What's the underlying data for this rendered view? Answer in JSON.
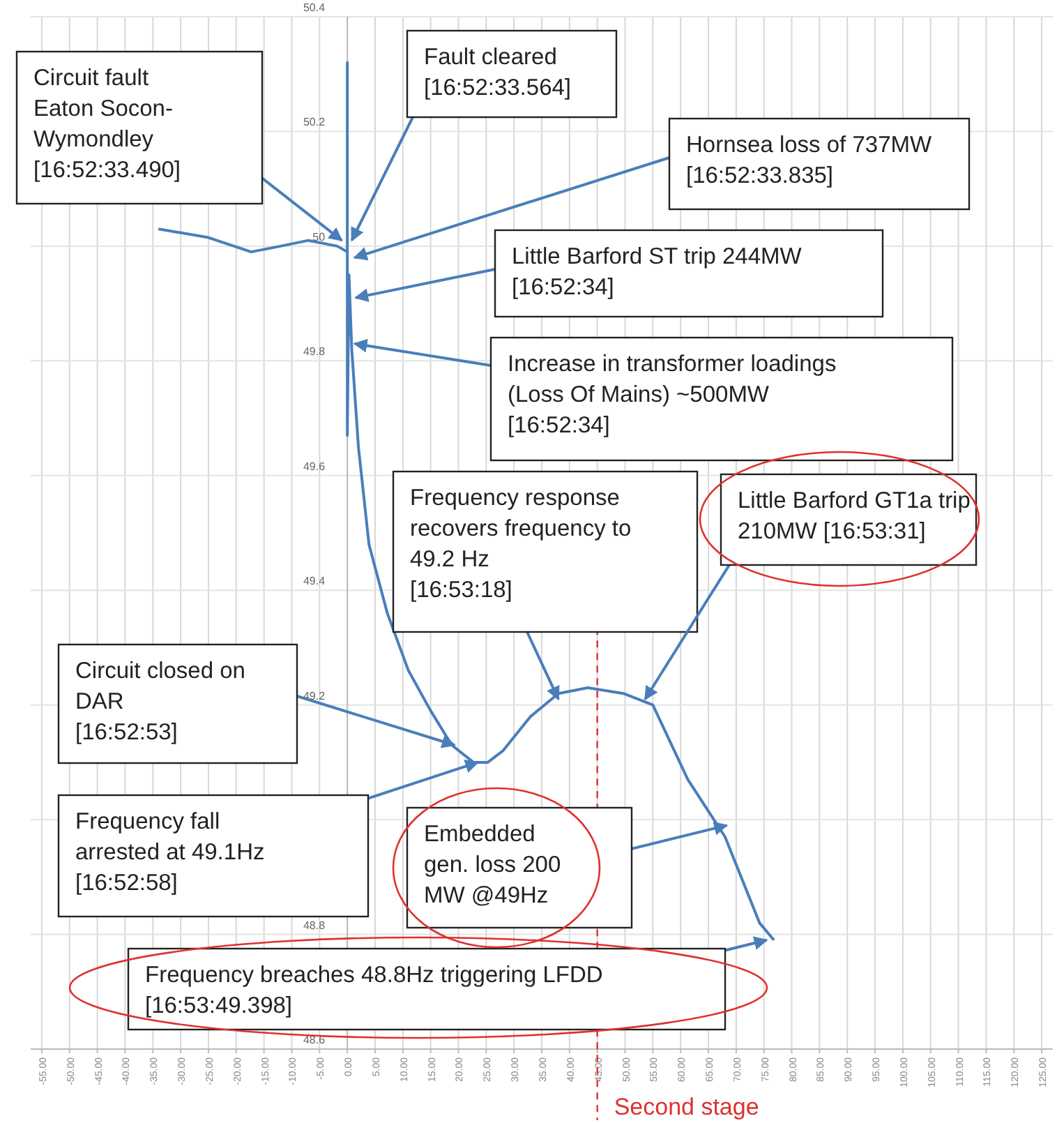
{
  "chart_data": {
    "type": "line",
    "x": [
      -34,
      -25,
      -17.3,
      -12,
      -7,
      -1.8,
      0,
      0,
      0,
      0.3,
      0.8,
      2,
      3.9,
      7.2,
      11,
      15,
      18.8,
      22.7,
      25.3,
      28,
      33,
      38,
      43.3,
      49.7,
      55,
      61.3,
      68,
      74.2,
      76.8
    ],
    "series": [
      {
        "color": "#4a7ebb",
        "values": [
          50.03,
          50.015,
          49.99,
          50.0,
          50.01,
          50.0,
          49.99,
          50.32,
          49.67,
          49.95,
          49.82,
          49.65,
          49.48,
          49.36,
          49.26,
          49.19,
          49.13,
          49.1,
          49.1,
          49.12,
          49.18,
          49.22,
          49.23,
          49.22,
          49.2,
          49.07,
          48.97,
          48.82,
          48.79
        ]
      }
    ],
    "xlim": [
      -57,
      127
    ],
    "xticks": [
      {
        "value": -55,
        "label": "-55.00"
      },
      {
        "value": -50,
        "label": "-50.00"
      },
      {
        "value": -45,
        "label": "-45.00"
      },
      {
        "value": -40,
        "label": "-40.00"
      },
      {
        "value": -35,
        "label": "-35.00"
      },
      {
        "value": -30,
        "label": "-30.00"
      },
      {
        "value": -25,
        "label": "-25.00"
      },
      {
        "value": -20,
        "label": "-20.00"
      },
      {
        "value": -15,
        "label": "-15.00"
      },
      {
        "value": -10,
        "label": "-10.00"
      },
      {
        "value": -5,
        "label": "-5.00"
      },
      {
        "value": 0,
        "label": "0.00"
      },
      {
        "value": 5,
        "label": "5.00"
      },
      {
        "value": 10,
        "label": "10.00"
      },
      {
        "value": 15,
        "label": "15.00"
      },
      {
        "value": 20,
        "label": "20.00"
      },
      {
        "value": 25,
        "label": "25.00"
      },
      {
        "value": 30,
        "label": "30.00"
      },
      {
        "value": 35,
        "label": "35.00"
      },
      {
        "value": 40,
        "label": "40.00"
      },
      {
        "value": 45,
        "label": "45.00"
      },
      {
        "value": 50,
        "label": "50.00"
      },
      {
        "value": 55,
        "label": "55.00"
      },
      {
        "value": 60,
        "label": "60.00"
      },
      {
        "value": 65,
        "label": "65.00"
      },
      {
        "value": 70,
        "label": "70.00"
      },
      {
        "value": 75,
        "label": "75.00"
      },
      {
        "value": 80,
        "label": "80.00"
      },
      {
        "value": 85,
        "label": "85.00"
      },
      {
        "value": 90,
        "label": "90.00"
      },
      {
        "value": 95,
        "label": "95.00"
      },
      {
        "value": 100,
        "label": "100.00"
      },
      {
        "value": 105,
        "label": "105.00"
      },
      {
        "value": 110,
        "label": "110.00"
      },
      {
        "value": 115,
        "label": "115.00"
      },
      {
        "value": 120,
        "label": "120.00"
      },
      {
        "value": 125,
        "label": "125.00"
      }
    ],
    "ylim": [
      48.6,
      50.4
    ],
    "yticks": [
      48.6,
      48.8,
      {
        "value": 49,
        "label": null
      },
      49.2,
      49.4,
      49.6,
      49.8,
      50,
      50.2,
      50.4
    ],
    "grid": true,
    "ref_lines": [
      {
        "axis": "x",
        "value": 45,
        "label": "Second stage",
        "color": "#e03030",
        "line_style": "dashed"
      }
    ],
    "annotations": [
      {
        "text": "Circuit fault\nEaton Socon-\nWymondley\n[16:52:33.490]",
        "x": -1,
        "y": 50.01
      },
      {
        "text": "Fault cleared\n[16:52:33.564]",
        "x": 0.8,
        "y": 50.01
      },
      {
        "text": "Hornsea loss of 737MW\n[16:52:33.835]",
        "x": 1.3,
        "y": 49.98
      },
      {
        "text": "Little Barford ST trip 244MW\n[16:52:34]",
        "x": 1.5,
        "y": 49.91
      },
      {
        "text": "Increase in transformer loadings\n(Loss Of Mains) ~500MW\n[16:52:34]",
        "x": 1.3,
        "y": 49.83
      },
      {
        "text": "Frequency response\nrecovers frequency to\n49.2 Hz\n[16:53:18]",
        "x": 38,
        "y": 49.21
      },
      {
        "text": "Little Barford GT1a trip\n210MW [16:53:31]",
        "x": 53.6,
        "y": 49.21
      },
      {
        "text": "Circuit closed on\nDAR\n[16:52:53]",
        "x": 19.3,
        "y": 49.13
      },
      {
        "text": "Frequency fall\narrested at 49.1Hz\n[16:52:58]",
        "x": 23.5,
        "y": 49.1
      },
      {
        "text": "Embedded\ngen. loss 200\nMW @49Hz",
        "x": 68.3,
        "y": 48.99
      },
      {
        "text": "Frequency breaches 48.8Hz triggering LFDD\n[16:53:49.398]",
        "x": 75.5,
        "y": 48.79
      }
    ]
  }
}
